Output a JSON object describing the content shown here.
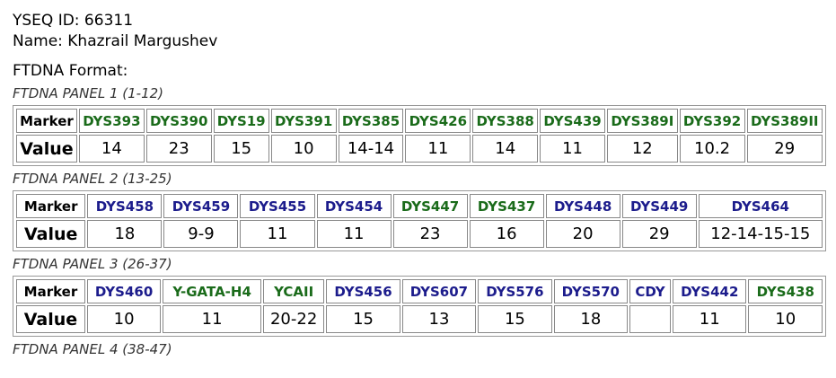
{
  "header": {
    "id_line": "YSEQ ID: 66311",
    "name_line": "Name: Khazrail Margushev",
    "format_line": "FTDNA Format:"
  },
  "row_labels": {
    "marker": "Marker",
    "value": "Value"
  },
  "panels": [
    {
      "title": "FTDNA PANEL 1 (1-12)",
      "markers": [
        {
          "label": "DYS393",
          "color": "#1a6b1a"
        },
        {
          "label": "DYS390",
          "color": "#1a6b1a"
        },
        {
          "label": "DYS19",
          "color": "#1a6b1a"
        },
        {
          "label": "DYS391",
          "color": "#1a6b1a"
        },
        {
          "label": "DYS385",
          "color": "#1a6b1a"
        },
        {
          "label": "DYS426",
          "color": "#1a6b1a"
        },
        {
          "label": "DYS388",
          "color": "#1a6b1a"
        },
        {
          "label": "DYS439",
          "color": "#1a6b1a"
        },
        {
          "label": "DYS389I",
          "color": "#1a6b1a"
        },
        {
          "label": "DYS392",
          "color": "#1a6b1a"
        },
        {
          "label": "DYS389II",
          "color": "#1a6b1a"
        }
      ],
      "values": [
        "14",
        "23",
        "15",
        "10",
        "14-14",
        "11",
        "14",
        "11",
        "12",
        "10.2",
        "29"
      ]
    },
    {
      "title": "FTDNA PANEL 2 (13-25)",
      "markers": [
        {
          "label": "DYS458",
          "color": "#1c1c8c"
        },
        {
          "label": "DYS459",
          "color": "#1c1c8c"
        },
        {
          "label": "DYS455",
          "color": "#1c1c8c"
        },
        {
          "label": "DYS454",
          "color": "#1c1c8c"
        },
        {
          "label": "DYS447",
          "color": "#1a6b1a"
        },
        {
          "label": "DYS437",
          "color": "#1a6b1a"
        },
        {
          "label": "DYS448",
          "color": "#1c1c8c"
        },
        {
          "label": "DYS449",
          "color": "#1c1c8c"
        },
        {
          "label": "DYS464",
          "color": "#1c1c8c"
        }
      ],
      "values": [
        "18",
        "9-9",
        "11",
        "11",
        "23",
        "16",
        "20",
        "29",
        "12-14-15-15"
      ]
    },
    {
      "title": "FTDNA PANEL 3 (26-37)",
      "markers": [
        {
          "label": "DYS460",
          "color": "#1c1c8c"
        },
        {
          "label": "Y-GATA-H4",
          "color": "#1a6b1a"
        },
        {
          "label": "YCAII",
          "color": "#1a6b1a"
        },
        {
          "label": "DYS456",
          "color": "#1c1c8c"
        },
        {
          "label": "DYS607",
          "color": "#1c1c8c"
        },
        {
          "label": "DYS576",
          "color": "#1c1c8c"
        },
        {
          "label": "DYS570",
          "color": "#1c1c8c"
        },
        {
          "label": "CDY",
          "color": "#1c1c8c"
        },
        {
          "label": "DYS442",
          "color": "#1c1c8c"
        },
        {
          "label": "DYS438",
          "color": "#1a6b1a"
        }
      ],
      "values": [
        "10",
        "11",
        "20-22",
        "15",
        "13",
        "15",
        "18",
        null,
        "11",
        "10"
      ]
    },
    {
      "title": "FTDNA PANEL 4 (38-47)",
      "markers": [],
      "values": []
    }
  ]
}
